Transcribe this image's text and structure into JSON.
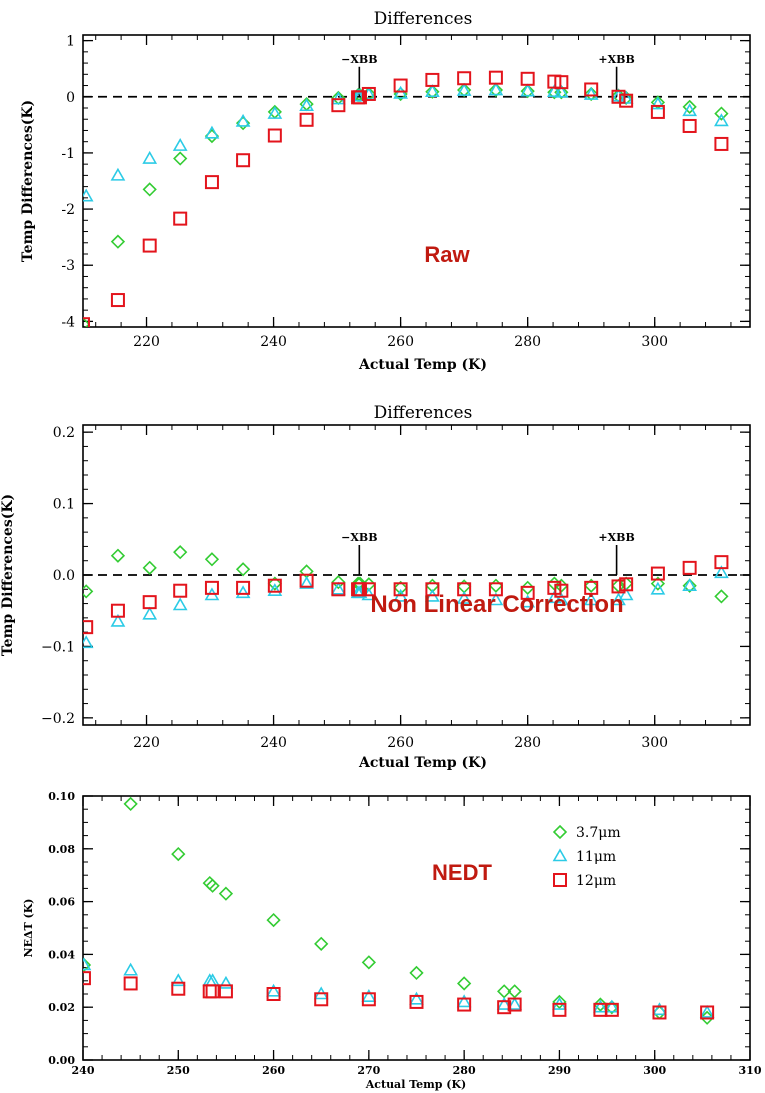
{
  "chart_data": [
    {
      "type": "scatter",
      "title": "Differences",
      "xlabel": "Actual Temp (K)",
      "ylabel": "Temp Differences(K)",
      "annotation": "Raw",
      "xlim": [
        210,
        315
      ],
      "ylim": [
        -4.1,
        1.1
      ],
      "xticks": [
        220,
        240,
        260,
        280,
        300
      ],
      "yticks": [
        -4,
        -3,
        -2,
        -1,
        0,
        1
      ],
      "zero_line": true,
      "markers": [
        {
          "label": "−XBB",
          "x": 253.5
        },
        {
          "label": "+XBB",
          "x": 294
        }
      ],
      "series": [
        {
          "marker": "diamond",
          "color": "#33cc33",
          "x": [
            210,
            215.5,
            220.5,
            225.3,
            230.3,
            235.2,
            240.2,
            245.2,
            250.2,
            253.3,
            253.6,
            255,
            260,
            265,
            270,
            275,
            280,
            284.2,
            285.3,
            290,
            294.3,
            295.5,
            300.5,
            305.5,
            310.5
          ],
          "y": [
            -4.05,
            -2.58,
            -1.65,
            -1.1,
            -0.7,
            -0.47,
            -0.27,
            -0.13,
            -0.02,
            0.03,
            0.03,
            0.05,
            0.05,
            0.09,
            0.12,
            0.12,
            0.1,
            0.08,
            0.08,
            0.05,
            0.02,
            -0.02,
            -0.1,
            -0.18,
            -0.3
          ]
        },
        {
          "marker": "triangle",
          "color": "#2ccbe6",
          "x": [
            210.5,
            215.5,
            220.5,
            225.3,
            230.3,
            235.2,
            240.2,
            245.2,
            250.2,
            253.3,
            253.6,
            255,
            260,
            265,
            270,
            275,
            280,
            284.2,
            285.3,
            290,
            294.3,
            295.5,
            300.5,
            305.5,
            310.5
          ],
          "y": [
            -1.77,
            -1.4,
            -1.1,
            -0.87,
            -0.65,
            -0.44,
            -0.3,
            -0.16,
            -0.04,
            0.01,
            0.01,
            0.04,
            0.06,
            0.09,
            0.11,
            0.12,
            0.1,
            0.09,
            0.08,
            0.04,
            0.01,
            -0.03,
            -0.13,
            -0.25,
            -0.43
          ]
        },
        {
          "marker": "square",
          "color": "#e3141c",
          "x": [
            210,
            215.5,
            220.5,
            225.3,
            230.3,
            235.2,
            240.2,
            245.2,
            250.2,
            253.3,
            253.6,
            255,
            260,
            265,
            270,
            275,
            280,
            284.2,
            285.3,
            290,
            294.3,
            295.5,
            300.5,
            305.5,
            310.5
          ],
          "y": [
            -4.05,
            -3.62,
            -2.65,
            -2.17,
            -1.52,
            -1.13,
            -0.69,
            -0.41,
            -0.15,
            -0.01,
            -0.01,
            0.05,
            0.2,
            0.3,
            0.33,
            0.34,
            0.32,
            0.27,
            0.26,
            0.13,
            0.0,
            -0.07,
            -0.27,
            -0.52,
            -0.84
          ]
        }
      ]
    },
    {
      "type": "scatter",
      "title": "Differences",
      "xlabel": "Actual Temp (K)",
      "ylabel": "Temp Differences(K)",
      "annotation": "Non Linear Correction",
      "xlim": [
        210,
        315
      ],
      "ylim": [
        -0.21,
        0.21
      ],
      "xticks": [
        220,
        240,
        260,
        280,
        300
      ],
      "yticks": [
        -0.2,
        -0.1,
        0.0,
        0.1,
        0.2
      ],
      "ytick_labels": [
        "−0.2",
        "−0.1",
        "0.0",
        "0.1",
        "0.2"
      ],
      "zero_line": true,
      "markers": [
        {
          "label": "−XBB",
          "x": 253.5
        },
        {
          "label": "+XBB",
          "x": 294
        }
      ],
      "series": [
        {
          "marker": "diamond",
          "color": "#33cc33",
          "x": [
            210.5,
            215.5,
            220.5,
            225.3,
            230.3,
            235.2,
            240.2,
            245.2,
            250.2,
            253.3,
            253.6,
            255,
            260,
            265,
            270,
            275,
            280,
            284.2,
            285.3,
            290,
            294.3,
            295.5,
            300.5,
            305.5,
            310.5
          ],
          "y": [
            -0.023,
            0.027,
            0.01,
            0.032,
            0.022,
            0.008,
            -0.012,
            0.005,
            -0.01,
            -0.012,
            -0.012,
            -0.013,
            -0.018,
            -0.015,
            -0.016,
            -0.015,
            -0.018,
            -0.012,
            -0.015,
            -0.015,
            -0.015,
            -0.012,
            -0.012,
            -0.015,
            -0.03
          ]
        },
        {
          "marker": "triangle",
          "color": "#2ccbe6",
          "x": [
            210.5,
            215.5,
            220.5,
            225.3,
            230.3,
            235.2,
            240.2,
            245.2,
            250.2,
            253.3,
            253.6,
            255,
            260,
            265,
            270,
            275,
            280,
            284.2,
            285.3,
            290,
            294.3,
            295.5,
            300.5,
            305.5,
            310.5
          ],
          "y": [
            -0.095,
            -0.065,
            -0.055,
            -0.042,
            -0.028,
            -0.025,
            -0.022,
            -0.012,
            -0.02,
            -0.025,
            -0.025,
            -0.028,
            -0.03,
            -0.03,
            -0.033,
            -0.035,
            -0.038,
            -0.032,
            -0.035,
            -0.035,
            -0.035,
            -0.028,
            -0.02,
            -0.015,
            0.003
          ]
        },
        {
          "marker": "square",
          "color": "#e3141c",
          "x": [
            210.5,
            215.5,
            220.5,
            225.3,
            230.3,
            235.2,
            240.2,
            245.2,
            250.2,
            253.3,
            253.6,
            255,
            260,
            265,
            270,
            275,
            280,
            284.2,
            285.3,
            290,
            294.3,
            295.5,
            300.5,
            305.5,
            310.5
          ],
          "y": [
            -0.073,
            -0.05,
            -0.038,
            -0.022,
            -0.018,
            -0.018,
            -0.015,
            -0.008,
            -0.02,
            -0.02,
            -0.02,
            -0.02,
            -0.02,
            -0.02,
            -0.02,
            -0.02,
            -0.025,
            -0.018,
            -0.022,
            -0.018,
            -0.016,
            -0.013,
            0.002,
            0.01,
            0.018
          ]
        }
      ]
    },
    {
      "type": "scatter",
      "title": "",
      "xlabel": "Actual Temp (K)",
      "ylabel": "NEΔT (K)",
      "annotation": "NEDT",
      "xlim": [
        240,
        310
      ],
      "ylim": [
        0.0,
        0.1
      ],
      "xticks": [
        240,
        250,
        260,
        270,
        280,
        290,
        300,
        310
      ],
      "yticks": [
        0.0,
        0.02,
        0.04,
        0.06,
        0.08,
        0.1
      ],
      "ytick_labels": [
        "0.00",
        "0.02",
        "0.04",
        "0.06",
        "0.08",
        "0.10"
      ],
      "legend": {
        "position": "top-right"
      },
      "series": [
        {
          "name": "3.7μm",
          "marker": "diamond",
          "color": "#33cc33",
          "x": [
            240.1,
            245,
            250,
            253.3,
            253.6,
            255,
            260,
            265,
            270,
            275,
            280,
            284.2,
            285.3,
            290,
            294.3,
            295.5,
            300.5,
            305.5
          ],
          "y": [
            0.036,
            0.097,
            0.078,
            0.067,
            0.066,
            0.063,
            0.053,
            0.044,
            0.037,
            0.033,
            0.029,
            0.026,
            0.026,
            0.022,
            0.021,
            0.02,
            0.018,
            0.016
          ]
        },
        {
          "name": "11μm",
          "marker": "triangle",
          "color": "#2ccbe6",
          "x": [
            240.1,
            245,
            250,
            253.3,
            253.6,
            255,
            260,
            265,
            270,
            275,
            280,
            284.2,
            285.3,
            290,
            294.3,
            295.5,
            300.5,
            305.5
          ],
          "y": [
            0.036,
            0.034,
            0.03,
            0.03,
            0.03,
            0.029,
            0.026,
            0.025,
            0.024,
            0.023,
            0.022,
            0.021,
            0.021,
            0.021,
            0.02,
            0.02,
            0.019,
            0.018
          ]
        },
        {
          "name": "12μm",
          "marker": "square",
          "color": "#e3141c",
          "x": [
            240.1,
            245,
            250,
            253.3,
            253.6,
            255,
            260,
            265,
            270,
            275,
            280,
            284.2,
            285.3,
            290,
            294.3,
            295.5,
            300.5,
            305.5
          ],
          "y": [
            0.031,
            0.029,
            0.027,
            0.026,
            0.026,
            0.026,
            0.025,
            0.023,
            0.023,
            0.022,
            0.021,
            0.02,
            0.021,
            0.019,
            0.019,
            0.019,
            0.018,
            0.018
          ]
        }
      ]
    }
  ]
}
